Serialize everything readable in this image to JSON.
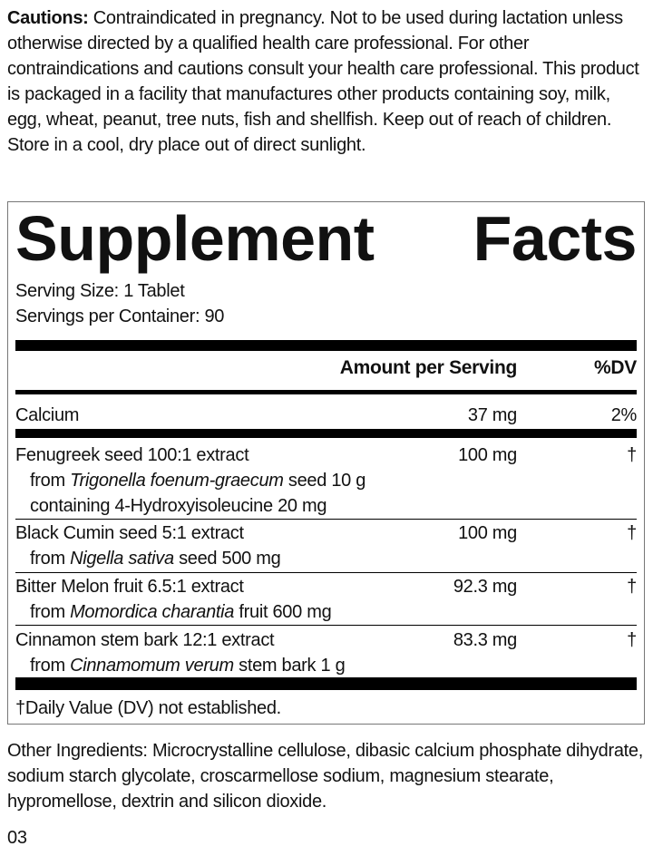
{
  "cautions": {
    "label": "Cautions:",
    "text": " Contraindicated in pregnancy. Not to be used during lactation unless otherwise directed by a qualified health care professional. For other contraindications and cautions consult your health care professional. This product is packaged in a facility that manufactures other products containing soy, milk, egg, wheat, peanut, tree nuts, fish and shellfish. Keep out of reach of children. Store in a cool, dry place out of direct sunlight."
  },
  "facts": {
    "title_word1": "Supplement",
    "title_word2": "Facts",
    "serving_size": "Serving Size: 1 Tablet",
    "servings_per_container": "Servings per Container: 90",
    "header_amount": "Amount per Serving",
    "header_dv": "%DV",
    "calcium": {
      "name": "Calcium",
      "amount": "37 mg",
      "dv": "2%"
    },
    "rows": [
      {
        "name": "Fenugreek seed 100:1 extract",
        "from_pre": "from ",
        "species": "Trigonella foenum-graecum",
        "from_post": " seed 10 g",
        "extra": "containing 4-Hydroxyisoleucine 20 mg",
        "amount": "100 mg",
        "dv": "†"
      },
      {
        "name": "Black Cumin seed 5:1 extract",
        "from_pre": "from ",
        "species": "Nigella sativa",
        "from_post": " seed 500 mg",
        "amount": "100 mg",
        "dv": "†"
      },
      {
        "name": "Bitter Melon fruit 6.5:1 extract",
        "from_pre": "from ",
        "species": "Momordica charantia",
        "from_post": " fruit 600 mg",
        "amount": "92.3 mg",
        "dv": "†"
      },
      {
        "name": "Cinnamon stem bark 12:1 extract",
        "from_pre": "from ",
        "species": "Cinnamomum verum",
        "from_post": " stem bark 1 g",
        "amount": "83.3 mg",
        "dv": "†"
      }
    ],
    "footnote": "†Daily Value (DV) not established."
  },
  "other_ingredients": "Other Ingredients: Microcrystalline cellulose, dibasic calcium phosphate dihydrate, sodium starch glycolate, croscarmellose sodium, magnesium stearate, hypromellose, dextrin and silicon dioxide.",
  "code": "03"
}
